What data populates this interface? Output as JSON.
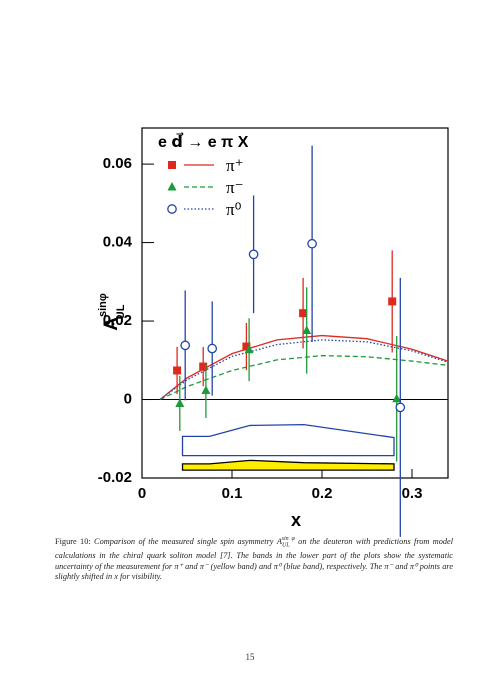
{
  "chart_data": {
    "type": "scatter",
    "reaction": "e d⃗ → e π X",
    "xlabel": "x",
    "ylabel": {
      "main": "A",
      "sup": "sinφ",
      "sub": "UL"
    },
    "xlim": [
      0,
      0.34
    ],
    "ylim": [
      -0.02,
      0.0692
    ],
    "xticks": [
      0,
      0.1,
      0.2,
      0.3
    ],
    "yticks": [
      -0.02,
      0,
      0.02,
      0.04,
      0.06
    ],
    "grid": false,
    "curve_x": [
      0.02,
      0.05,
      0.1,
      0.15,
      0.2,
      0.25,
      0.3,
      0.34
    ],
    "series": [
      {
        "name": "π⁺",
        "color": "#dd2a1c",
        "marker": "square",
        "line_style": "solid",
        "x": [
          0.039,
          0.068,
          0.116,
          0.179,
          0.278
        ],
        "values": [
          0.0074,
          0.0084,
          0.0135,
          0.022,
          0.025
        ],
        "errors": [
          0.006,
          0.005,
          0.006,
          0.009,
          0.013
        ],
        "curve": [
          0,
          0.0055,
          0.0117,
          0.0152,
          0.0163,
          0.0155,
          0.0128,
          0.0098
        ]
      },
      {
        "name": "π⁻",
        "color": "#1f9a3a",
        "marker": "triangle",
        "line_style": "dashed",
        "x": [
          0.042,
          0.071,
          0.119,
          0.183,
          0.283
        ],
        "values": [
          -0.001,
          0.0023,
          0.0127,
          0.0176,
          0.0002
        ],
        "errors": [
          0.007,
          0.007,
          0.008,
          0.011,
          0.016
        ],
        "curve": [
          0,
          0.0033,
          0.0074,
          0.0101,
          0.0112,
          0.0109,
          0.0098,
          0.0087
        ]
      },
      {
        "name": "π⁰",
        "color": "#2244aa",
        "marker": "open-circle",
        "line_style": "dotted",
        "x": [
          0.048,
          0.078,
          0.124,
          0.189,
          0.287
        ],
        "values": [
          0.0138,
          0.013,
          0.037,
          0.0397,
          -0.002
        ],
        "errors": [
          0.014,
          0.012,
          0.015,
          0.025,
          0.033
        ],
        "curve": [
          0,
          0.005,
          0.011,
          0.014,
          0.0152,
          0.0147,
          0.0124,
          0.0095
        ]
      }
    ],
    "bands": [
      {
        "color": "#2244aa",
        "fill": "none",
        "x": [
          0.045,
          0.075,
          0.12,
          0.18,
          0.28
        ],
        "upper": [
          -0.0094,
          -0.0094,
          -0.0066,
          -0.0064,
          -0.0097
        ],
        "lower": [
          -0.0143,
          -0.0143,
          -0.0143,
          -0.0143,
          -0.0143
        ]
      },
      {
        "color": "#000000",
        "fill": "#ffee00",
        "x": [
          0.045,
          0.075,
          0.12,
          0.18,
          0.28
        ],
        "upper": [
          -0.0164,
          -0.0164,
          -0.0155,
          -0.0161,
          -0.0164
        ],
        "lower": [
          -0.018,
          -0.018,
          -0.018,
          -0.018,
          -0.018
        ]
      }
    ]
  },
  "caption": {
    "label": "Figure 10:",
    "before": "Comparison of the measured single spin asymmetry",
    "symbol": {
      "main": "A",
      "sup": "sin φ",
      "sub": "UL"
    },
    "after": "on the deuteron with predictions from model calculations in the chiral quark soliton model [7]. The bands in the lower part of the plots show the systematic uncertainty of the measurement for π⁺ and π⁻ (yellow band) and π⁰ (blue band), respectively. The π⁻ and π⁰ points are slightly shifted in x for visibility."
  },
  "page_number": "15"
}
